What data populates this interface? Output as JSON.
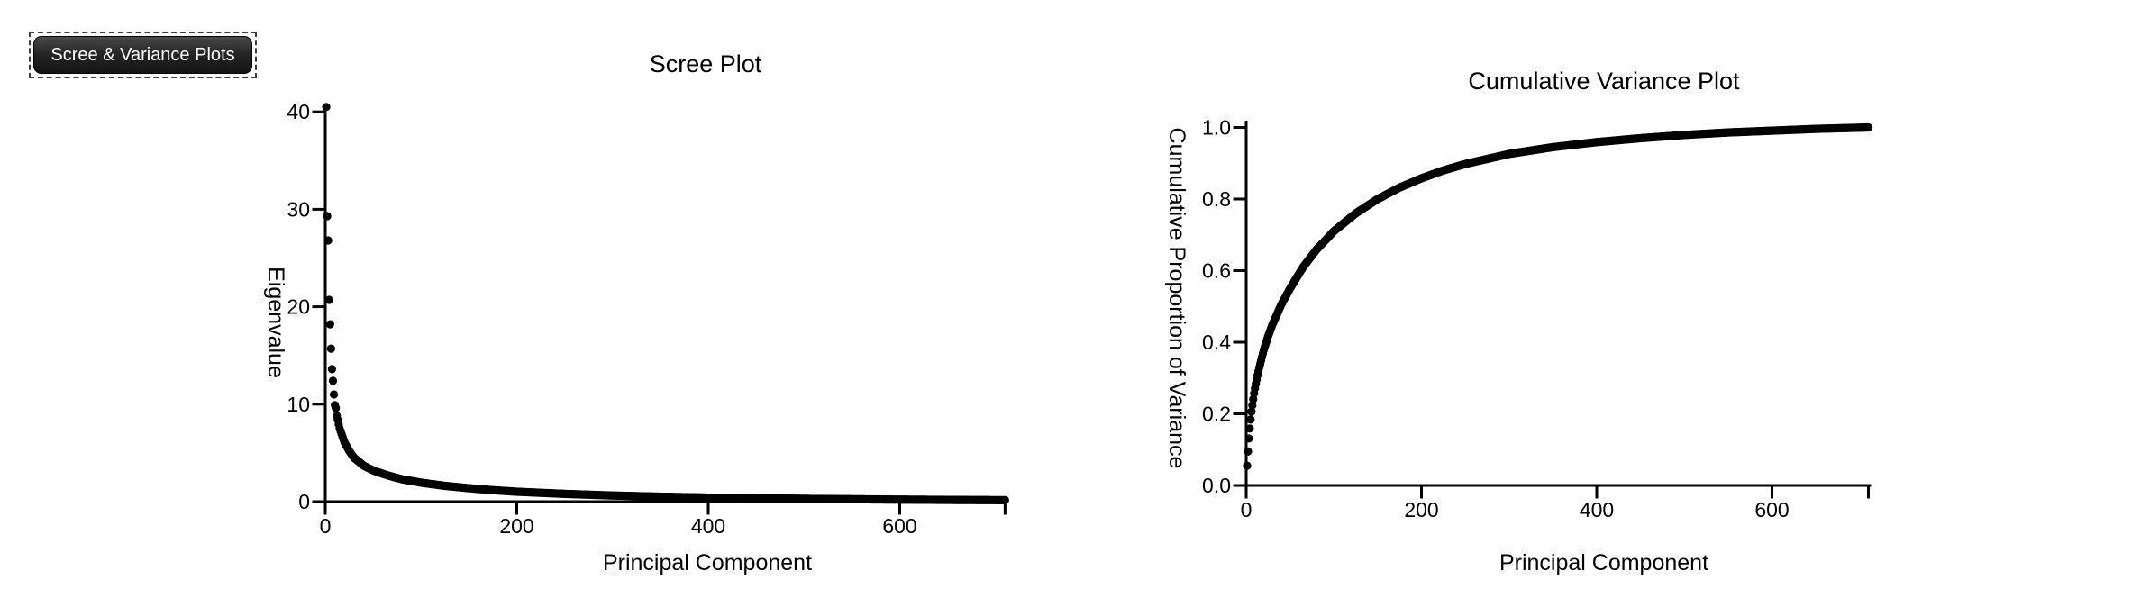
{
  "app": {
    "background_color": "#ffffff",
    "text_color": "#000000"
  },
  "toolbar": {
    "plots_button_label": "Scree & Variance Plots",
    "button_text_color": "#ffffff",
    "button_bg_color": "#1e1e1e",
    "selection_outline_style": "dashed"
  },
  "chart_data": [
    {
      "type": "scatter",
      "title": "Scree Plot",
      "xlabel": "Principal Component",
      "ylabel": "Eigenvalue",
      "xlim": [
        0,
        710
      ],
      "ylim": [
        0,
        40
      ],
      "xticks": [
        0,
        200,
        400,
        600
      ],
      "xtick_labels": [
        "0",
        "200",
        "400",
        "600"
      ],
      "yticks": [
        0,
        10,
        20,
        30,
        40
      ],
      "ytick_labels": [
        "0",
        "10",
        "20",
        "30",
        "40"
      ],
      "grid": false,
      "legend": "none",
      "marker": "filled-dot",
      "marker_color": "#000000",
      "n_points": 710,
      "points_sampled": [
        [
          1,
          40.5
        ],
        [
          2,
          29.3
        ],
        [
          3,
          26.8
        ],
        [
          4,
          20.7
        ],
        [
          5,
          18.2
        ],
        [
          6,
          15.7
        ],
        [
          7,
          13.6
        ],
        [
          8,
          12.4
        ],
        [
          9,
          11.0
        ],
        [
          10,
          9.9
        ],
        [
          11,
          9.6
        ],
        [
          12,
          8.8
        ],
        [
          13,
          8.4
        ],
        [
          15,
          7.5
        ],
        [
          20,
          6.1
        ],
        [
          25,
          5.2
        ],
        [
          30,
          4.5
        ],
        [
          40,
          3.7
        ],
        [
          50,
          3.2
        ],
        [
          65,
          2.7
        ],
        [
          80,
          2.3
        ],
        [
          100,
          1.95
        ],
        [
          125,
          1.62
        ],
        [
          150,
          1.38
        ],
        [
          175,
          1.18
        ],
        [
          200,
          1.02
        ],
        [
          250,
          0.8
        ],
        [
          300,
          0.63
        ],
        [
          350,
          0.51
        ],
        [
          400,
          0.42
        ],
        [
          450,
          0.35
        ],
        [
          500,
          0.29
        ],
        [
          550,
          0.25
        ],
        [
          600,
          0.21
        ],
        [
          650,
          0.18
        ],
        [
          710,
          0.15
        ]
      ]
    },
    {
      "type": "scatter",
      "title": "Cumulative Variance Plot",
      "xlabel": "Principal Component",
      "ylabel": "Cumulative Proportion of Variance",
      "xlim": [
        0,
        710
      ],
      "ylim": [
        0.0,
        1.0
      ],
      "xticks": [
        0,
        200,
        400,
        600
      ],
      "xtick_labels": [
        "0",
        "200",
        "400",
        "600"
      ],
      "yticks": [
        0.0,
        0.2,
        0.4,
        0.6,
        0.8,
        1.0
      ],
      "ytick_labels": [
        "0.0",
        "0.2",
        "0.4",
        "0.6",
        "0.8",
        "1.0"
      ],
      "grid": false,
      "legend": "none",
      "marker": "filled-dot",
      "marker_color": "#000000",
      "n_points": 710,
      "points_sampled": [
        [
          1,
          0.055
        ],
        [
          2,
          0.095
        ],
        [
          3,
          0.131
        ],
        [
          4,
          0.159
        ],
        [
          5,
          0.184
        ],
        [
          6,
          0.206
        ],
        [
          7,
          0.224
        ],
        [
          8,
          0.241
        ],
        [
          9,
          0.257
        ],
        [
          10,
          0.271
        ],
        [
          11,
          0.284
        ],
        [
          12,
          0.296
        ],
        [
          13,
          0.308
        ],
        [
          15,
          0.33
        ],
        [
          20,
          0.378
        ],
        [
          25,
          0.417
        ],
        [
          30,
          0.45
        ],
        [
          40,
          0.505
        ],
        [
          50,
          0.55
        ],
        [
          65,
          0.61
        ],
        [
          80,
          0.658
        ],
        [
          100,
          0.71
        ],
        [
          125,
          0.76
        ],
        [
          150,
          0.8
        ],
        [
          175,
          0.832
        ],
        [
          200,
          0.858
        ],
        [
          225,
          0.88
        ],
        [
          250,
          0.898
        ],
        [
          300,
          0.926
        ],
        [
          350,
          0.945
        ],
        [
          400,
          0.959
        ],
        [
          450,
          0.97
        ],
        [
          500,
          0.979
        ],
        [
          550,
          0.986
        ],
        [
          600,
          0.991
        ],
        [
          650,
          0.996
        ],
        [
          710,
          1.0
        ]
      ]
    }
  ]
}
